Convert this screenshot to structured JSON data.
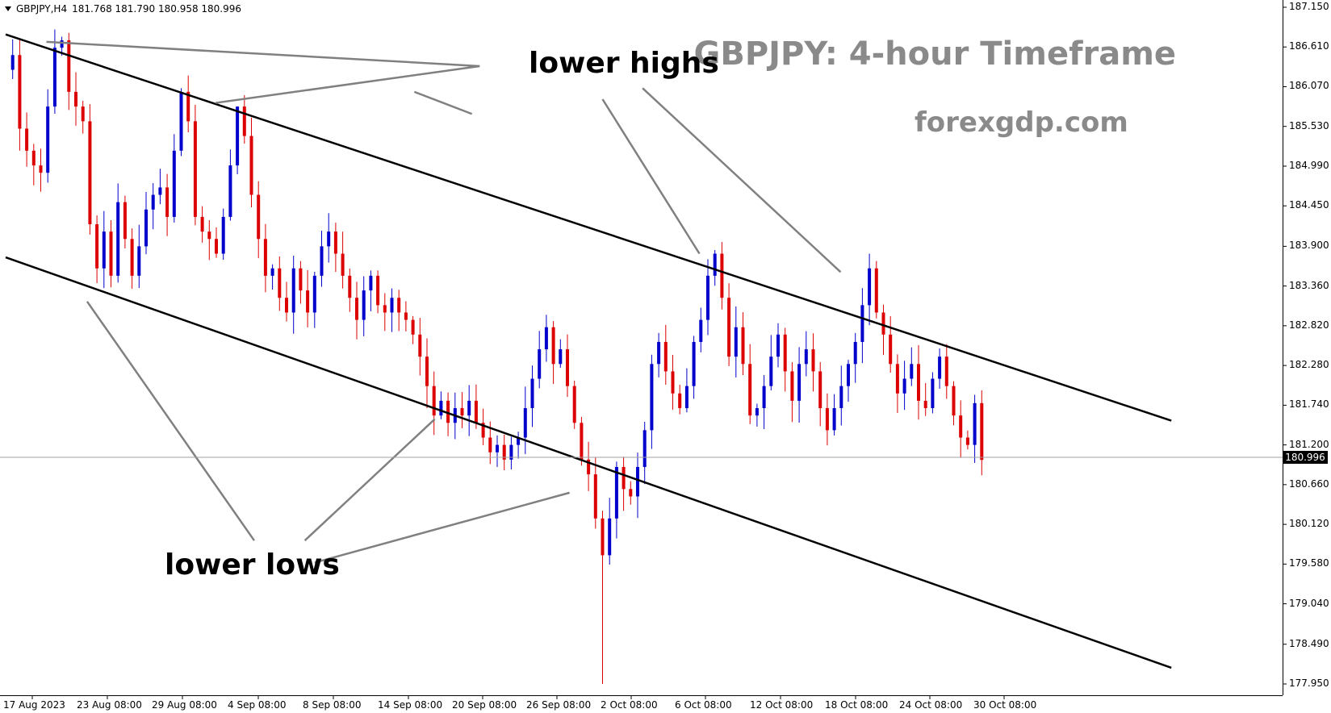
{
  "header": {
    "symbol_info": "GBPJPY,H4",
    "ohlc": "181.768 181.790 180.958 180.996"
  },
  "overlay": {
    "title": "GBPJPY: 4-hour Timeframe",
    "website": "forexgdp.com",
    "label_highs": "lower highs",
    "label_lows": "lower lows"
  },
  "current_price_label": "180.996",
  "colors": {
    "bull": "#0000cc",
    "bear": "#dd0000",
    "trendline": "#000000",
    "pointer": "#808080",
    "overlay_text": "#8a8a8a"
  },
  "chart_data": {
    "type": "candlestick",
    "symbol": "GBPJPY",
    "timeframe": "H4",
    "ylim": [
      177.7,
      187.2
    ],
    "y_ticks": [
      "187.150",
      "186.610",
      "186.070",
      "185.530",
      "184.990",
      "184.450",
      "183.900",
      "183.360",
      "182.820",
      "182.280",
      "181.740",
      "181.200",
      "180.660",
      "180.120",
      "179.580",
      "179.040",
      "178.490",
      "177.950"
    ],
    "x_ticks": [
      "17 Aug 2023",
      "23 Aug 08:00",
      "29 Aug 08:00",
      "4 Sep 08:00",
      "8 Sep 08:00",
      "14 Sep 08:00",
      "20 Sep 08:00",
      "26 Sep 08:00",
      "2 Oct 08:00",
      "6 Oct 08:00",
      "12 Oct 08:00",
      "18 Oct 08:00",
      "24 Oct 08:00",
      "30 Oct 08:00"
    ],
    "current_price": 180.996,
    "close_path": [
      [
        0,
        186.3
      ],
      [
        1,
        186.5
      ],
      [
        2,
        185.5
      ],
      [
        3,
        185.2
      ],
      [
        4,
        185.0
      ],
      [
        5,
        184.9
      ],
      [
        6,
        185.8
      ],
      [
        7,
        186.6
      ],
      [
        8,
        186.7
      ],
      [
        9,
        186.0
      ],
      [
        10,
        185.8
      ],
      [
        11,
        185.6
      ],
      [
        12,
        184.2
      ],
      [
        13,
        183.6
      ],
      [
        14,
        184.1
      ],
      [
        15,
        183.5
      ],
      [
        16,
        184.5
      ],
      [
        17,
        184.0
      ],
      [
        18,
        183.5
      ],
      [
        19,
        183.9
      ],
      [
        20,
        184.4
      ],
      [
        21,
        184.6
      ],
      [
        22,
        184.7
      ],
      [
        23,
        184.3
      ],
      [
        24,
        185.2
      ],
      [
        25,
        186.0
      ],
      [
        26,
        185.6
      ],
      [
        27,
        184.3
      ],
      [
        28,
        184.1
      ],
      [
        29,
        184.0
      ],
      [
        30,
        183.8
      ],
      [
        31,
        184.3
      ],
      [
        32,
        185.0
      ],
      [
        33,
        185.8
      ],
      [
        34,
        185.4
      ],
      [
        35,
        184.6
      ],
      [
        36,
        184.0
      ],
      [
        37,
        183.5
      ],
      [
        38,
        183.6
      ],
      [
        39,
        183.2
      ],
      [
        40,
        183.0
      ],
      [
        41,
        183.6
      ],
      [
        42,
        183.3
      ],
      [
        43,
        183.0
      ],
      [
        44,
        183.5
      ],
      [
        45,
        183.9
      ],
      [
        46,
        184.1
      ],
      [
        47,
        183.8
      ],
      [
        48,
        183.5
      ],
      [
        49,
        183.2
      ],
      [
        50,
        182.9
      ],
      [
        51,
        183.3
      ],
      [
        52,
        183.5
      ],
      [
        53,
        183.1
      ],
      [
        54,
        183.0
      ],
      [
        55,
        183.2
      ],
      [
        56,
        183.0
      ],
      [
        57,
        182.9
      ],
      [
        58,
        182.7
      ],
      [
        59,
        182.4
      ],
      [
        60,
        182.0
      ],
      [
        61,
        181.6
      ],
      [
        62,
        181.8
      ],
      [
        63,
        181.5
      ],
      [
        64,
        181.7
      ],
      [
        65,
        181.6
      ],
      [
        66,
        181.8
      ],
      [
        67,
        181.5
      ],
      [
        68,
        181.3
      ],
      [
        69,
        181.1
      ],
      [
        70,
        181.2
      ],
      [
        71,
        181.0
      ],
      [
        72,
        181.2
      ],
      [
        73,
        181.3
      ],
      [
        74,
        181.7
      ],
      [
        75,
        182.1
      ],
      [
        76,
        182.5
      ],
      [
        77,
        182.8
      ],
      [
        78,
        182.3
      ],
      [
        79,
        182.5
      ],
      [
        80,
        182.0
      ],
      [
        81,
        181.5
      ],
      [
        82,
        181.0
      ],
      [
        83,
        180.8
      ],
      [
        84,
        180.2
      ],
      [
        85,
        179.7
      ],
      [
        86,
        180.2
      ],
      [
        87,
        180.9
      ],
      [
        88,
        180.6
      ],
      [
        89,
        180.5
      ],
      [
        90,
        180.9
      ],
      [
        91,
        181.4
      ],
      [
        92,
        182.3
      ],
      [
        93,
        182.6
      ],
      [
        94,
        182.2
      ],
      [
        95,
        181.9
      ],
      [
        96,
        181.7
      ],
      [
        97,
        182.0
      ],
      [
        98,
        182.6
      ],
      [
        99,
        182.9
      ],
      [
        100,
        183.5
      ],
      [
        101,
        183.8
      ],
      [
        102,
        183.2
      ],
      [
        103,
        182.4
      ],
      [
        104,
        182.8
      ],
      [
        105,
        182.3
      ],
      [
        106,
        181.6
      ],
      [
        107,
        181.7
      ],
      [
        108,
        182.0
      ],
      [
        109,
        182.4
      ],
      [
        110,
        182.7
      ],
      [
        111,
        182.2
      ],
      [
        112,
        181.8
      ],
      [
        113,
        182.3
      ],
      [
        114,
        182.5
      ],
      [
        115,
        182.2
      ],
      [
        116,
        181.7
      ],
      [
        117,
        181.4
      ],
      [
        118,
        181.7
      ],
      [
        119,
        182.0
      ],
      [
        120,
        182.3
      ],
      [
        121,
        182.6
      ],
      [
        122,
        183.1
      ],
      [
        123,
        183.6
      ],
      [
        124,
        183.0
      ],
      [
        125,
        182.7
      ],
      [
        126,
        182.3
      ],
      [
        127,
        181.9
      ],
      [
        128,
        182.1
      ],
      [
        129,
        182.3
      ],
      [
        130,
        181.8
      ],
      [
        131,
        181.7
      ],
      [
        132,
        182.1
      ],
      [
        133,
        182.4
      ],
      [
        134,
        182.0
      ],
      [
        135,
        181.6
      ],
      [
        136,
        181.3
      ],
      [
        137,
        181.2
      ],
      [
        138,
        181.768
      ],
      [
        139,
        180.996
      ]
    ],
    "spikes": [
      {
        "i": 8,
        "high": 186.75
      },
      {
        "i": 25,
        "high": 186.05
      },
      {
        "i": 33,
        "high": 185.8
      },
      {
        "i": 85,
        "low": 177.95
      },
      {
        "i": 70,
        "low": 180.9
      },
      {
        "i": 101,
        "high": 183.85
      },
      {
        "i": 123,
        "high": 183.8
      },
      {
        "i": 13,
        "low": 183.4
      }
    ],
    "trendlines": [
      {
        "name": "upper",
        "from": [
          0,
          186.78
        ],
        "to": [
          166,
          181.53
        ]
      },
      {
        "name": "lower",
        "from": [
          0,
          183.75
        ],
        "to": [
          166,
          178.17
        ]
      }
    ],
    "callouts": [
      {
        "label": "lower highs",
        "from": [
          67.5,
          186.35
        ],
        "to": [
          5.8,
          186.68
        ]
      },
      {
        "label": "lower highs",
        "from": [
          67.5,
          186.35
        ],
        "to": [
          29.9,
          185.85
        ]
      },
      {
        "label": "lower highs",
        "from": [
          58.2,
          186.0
        ],
        "to": [
          66.4,
          185.7
        ]
      },
      {
        "label": "lower highs",
        "from": [
          85.0,
          185.9
        ],
        "to": [
          98.8,
          183.8
        ]
      },
      {
        "label": "lower highs",
        "from": [
          90.7,
          186.05
        ],
        "to": [
          118.9,
          183.55
        ]
      },
      {
        "label": "lower lows",
        "from": [
          11.6,
          183.15
        ],
        "to": [
          35.4,
          179.9
        ]
      },
      {
        "label": "lower lows",
        "from": [
          42.6,
          179.9
        ],
        "to": [
          61.1,
          181.55
        ]
      },
      {
        "label": "lower lows",
        "from": [
          44.0,
          179.6
        ],
        "to": [
          80.3,
          180.55
        ]
      }
    ]
  }
}
